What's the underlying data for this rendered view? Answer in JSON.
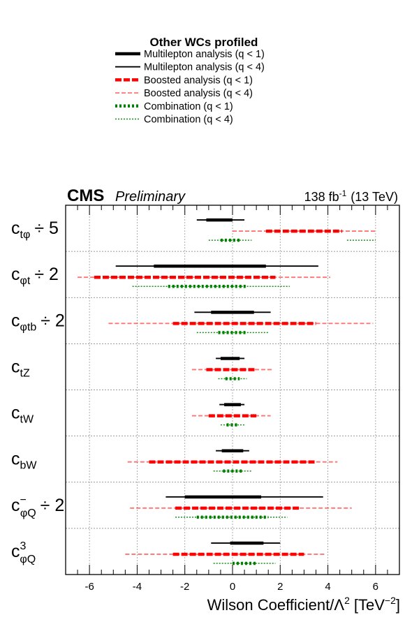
{
  "legend": {
    "title": "Other WCs profiled",
    "entries": [
      {
        "label": "Multilepton analysis (q < 1)",
        "color": "#000000",
        "style": "solid-thick"
      },
      {
        "label": "Multilepton analysis (q < 4)",
        "color": "#000000",
        "style": "solid-thin"
      },
      {
        "label": "Boosted analysis (q < 1)",
        "color": "#ff0000",
        "style": "dashed-thick"
      },
      {
        "label": "Boosted analysis (q < 4)",
        "color": "#ff0000",
        "style": "dashed-thin"
      },
      {
        "label": "Combination (q < 1)",
        "color": "#008000",
        "style": "dotted-thick"
      },
      {
        "label": "Combination (q < 4)",
        "color": "#008000",
        "style": "dotted-thin"
      }
    ]
  },
  "header": {
    "experiment": "CMS",
    "status": "Preliminary",
    "lumi_value": "138 fb",
    "lumi_exp": "-1",
    "energy": "(13 TeV)"
  },
  "xaxis": {
    "label_main": "Wilson Coefficient/Λ",
    "label_exp": "2",
    "unit_main": "[TeV",
    "unit_exp": "−2",
    "unit_close": "]"
  },
  "chart_data": {
    "type": "interval",
    "xlim": [
      -7,
      7
    ],
    "xticks": [
      -6,
      -4,
      -2,
      0,
      2,
      4,
      6
    ],
    "xtick_labels": [
      "-6",
      "-4",
      "-2",
      "0",
      "2",
      "4",
      "6"
    ],
    "grid": true,
    "series": [
      {
        "name": "Multilepton analysis (q < 1)",
        "color": "#000000",
        "style": "solid-thick"
      },
      {
        "name": "Multilepton analysis (q < 4)",
        "color": "#000000",
        "style": "solid-thin"
      },
      {
        "name": "Boosted analysis (q < 1)",
        "color": "#ff0000",
        "style": "dashed-thick"
      },
      {
        "name": "Boosted analysis (q < 4)",
        "color": "#ff0000",
        "style": "dashed-thin"
      },
      {
        "name": "Combination (q < 1)",
        "color": "#008000",
        "style": "dotted-thick"
      },
      {
        "name": "Combination (q < 4)",
        "color": "#008000",
        "style": "dotted-thin"
      }
    ],
    "rows": [
      {
        "label_base": "c",
        "label_sub": "tφ",
        "label_sup": "",
        "label_suffix": "÷ 5",
        "multilepton": {
          "q1": [
            [
              -1.1,
              0.0
            ]
          ],
          "q4": [
            [
              -1.5,
              0.5
            ]
          ]
        },
        "boosted": {
          "q1": [
            [
              1.4,
              4.6
            ]
          ],
          "q4": [
            [
              0.0,
              6.0
            ]
          ]
        },
        "combination": {
          "q1": [
            [
              -0.5,
              0.3
            ]
          ],
          "q4": [
            [
              -1.0,
              0.8
            ],
            [
              4.8,
              6.0
            ]
          ]
        }
      },
      {
        "label_base": "c",
        "label_sub": "φt",
        "label_sup": "",
        "label_suffix": "÷ 2",
        "multilepton": {
          "q1": [
            [
              -3.3,
              1.4
            ]
          ],
          "q4": [
            [
              -4.9,
              3.6
            ]
          ]
        },
        "boosted": {
          "q1": [
            [
              -5.8,
              1.8
            ]
          ],
          "q4": [
            [
              -6.5,
              4.1
            ]
          ]
        },
        "combination": {
          "q1": [
            [
              -2.7,
              0.6
            ]
          ],
          "q4": [
            [
              -4.2,
              2.4
            ]
          ]
        }
      },
      {
        "label_base": "c",
        "label_sub": "φtb",
        "label_sup": "",
        "label_suffix": "÷ 2",
        "multilepton": {
          "q1": [
            [
              -0.9,
              0.9
            ]
          ],
          "q4": [
            [
              -1.6,
              1.6
            ]
          ]
        },
        "boosted": {
          "q1": [
            [
              -2.5,
              3.5
            ]
          ],
          "q4": [
            [
              -5.2,
              5.9
            ]
          ]
        },
        "combination": {
          "q1": [
            [
              -0.6,
              0.6
            ]
          ],
          "q4": [
            [
              -1.5,
              1.5
            ]
          ]
        }
      },
      {
        "label_base": "c",
        "label_sub": "tZ",
        "label_sup": "",
        "label_suffix": "",
        "multilepton": {
          "q1": [
            [
              -0.5,
              0.3
            ]
          ],
          "q4": [
            [
              -0.7,
              0.5
            ]
          ]
        },
        "boosted": {
          "q1": [
            [
              -1.1,
              1.0
            ]
          ],
          "q4": [
            [
              -1.7,
              1.7
            ]
          ]
        },
        "combination": {
          "q1": [
            [
              -0.3,
              0.3
            ]
          ],
          "q4": [
            [
              -0.6,
              0.6
            ]
          ]
        }
      },
      {
        "label_base": "c",
        "label_sub": "tW",
        "label_sup": "",
        "label_suffix": "",
        "multilepton": {
          "q1": [
            [
              -0.35,
              0.35
            ]
          ],
          "q4": [
            [
              -0.55,
              0.5
            ]
          ]
        },
        "boosted": {
          "q1": [
            [
              -1.0,
              1.0
            ]
          ],
          "q4": [
            [
              -1.7,
              1.6
            ]
          ]
        },
        "combination": {
          "q1": [
            [
              -0.25,
              0.25
            ]
          ],
          "q4": [
            [
              -0.5,
              0.5
            ]
          ]
        }
      },
      {
        "label_base": "c",
        "label_sub": "bW",
        "label_sup": "",
        "label_suffix": "",
        "multilepton": {
          "q1": [
            [
              -0.45,
              0.45
            ]
          ],
          "q4": [
            [
              -0.7,
              0.7
            ]
          ]
        },
        "boosted": {
          "q1": [
            [
              -3.5,
              3.5
            ]
          ],
          "q4": [
            [
              -4.4,
              4.4
            ]
          ]
        },
        "combination": {
          "q1": [
            [
              -0.4,
              0.4
            ]
          ],
          "q4": [
            [
              -0.8,
              0.8
            ]
          ]
        }
      },
      {
        "label_base": "c",
        "label_sub": "φQ",
        "label_sup": "−",
        "label_suffix": "÷ 2",
        "multilepton": {
          "q1": [
            [
              -2.0,
              1.2
            ]
          ],
          "q4": [
            [
              -2.8,
              3.8
            ]
          ]
        },
        "boosted": {
          "q1": [
            [
              -2.4,
              2.8
            ]
          ],
          "q4": [
            [
              -4.3,
              5.0
            ]
          ]
        },
        "combination": {
          "q1": [
            [
              -1.5,
              1.5
            ]
          ],
          "q4": [
            [
              -2.4,
              2.3
            ]
          ]
        }
      },
      {
        "label_base": "c",
        "label_sub": "φQ",
        "label_sup": "3",
        "label_suffix": "",
        "multilepton": {
          "q1": [
            [
              -0.1,
              1.3
            ]
          ],
          "q4": [
            [
              -0.9,
              2.0
            ]
          ]
        },
        "boosted": {
          "q1": [
            [
              -2.5,
              3.0
            ]
          ],
          "q4": [
            [
              -4.5,
              3.9
            ]
          ]
        },
        "combination": {
          "q1": [
            [
              0.0,
              1.0
            ]
          ],
          "q4": [
            [
              -0.8,
              1.8
            ]
          ]
        }
      }
    ]
  }
}
